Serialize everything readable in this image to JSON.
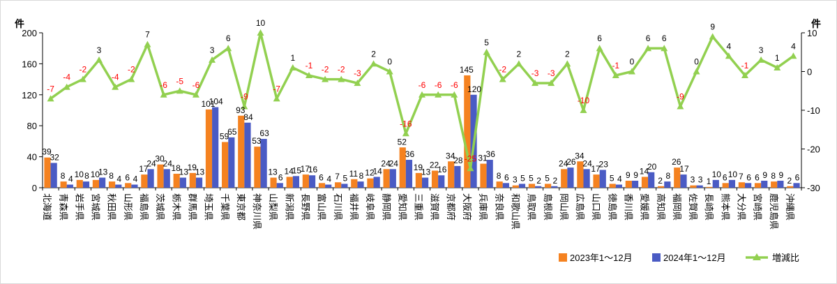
{
  "chart_data": {
    "type": "bar",
    "y_left_unit": "件",
    "y_right_unit": "件",
    "ylim": [
      0,
      200
    ],
    "yticks": [
      0,
      40,
      80,
      120,
      160,
      200
    ],
    "ylim_right": [
      -30,
      10
    ],
    "yticks_right": [
      -30,
      -20,
      -10,
      0,
      10
    ],
    "categories": [
      "北海道",
      "青森県",
      "岩手県",
      "宮城県",
      "秋田県",
      "山形県",
      "福島県",
      "茨城県",
      "栃木県",
      "群馬県",
      "埼玉県",
      "千葉県",
      "東京都",
      "神奈川県",
      "山梨県",
      "新潟県",
      "長野県",
      "富山県",
      "石川県",
      "福井県",
      "岐阜県",
      "静岡県",
      "愛知県",
      "三重県",
      "滋賀県",
      "京都府",
      "大阪府",
      "兵庫県",
      "奈良県",
      "和歌山県",
      "鳥取県",
      "島根県",
      "岡山県",
      "広島県",
      "山口県",
      "徳島県",
      "香川県",
      "愛媛県",
      "高知県",
      "福岡県",
      "佐賀県",
      "長崎県",
      "熊本県",
      "大分県",
      "宮崎県",
      "鹿児島県",
      "沖縄県"
    ],
    "series": [
      {
        "name": "2023年1～12月",
        "type": "bar",
        "axis": "left",
        "color": "#f58220",
        "values": [
          39,
          8,
          10,
          10,
          8,
          6,
          17,
          30,
          18,
          19,
          101,
          59,
          93,
          53,
          13,
          14,
          17,
          6,
          7,
          11,
          12,
          24,
          52,
          19,
          22,
          34,
          145,
          31,
          8,
          3,
          5,
          5,
          24,
          34,
          17,
          5,
          9,
          14,
          2,
          26,
          3,
          1,
          6,
          7,
          6,
          8,
          2
        ]
      },
      {
        "name": "2024年1～12月",
        "type": "bar",
        "axis": "left",
        "color": "#4a5bc4",
        "values": [
          32,
          4,
          8,
          13,
          4,
          4,
          24,
          24,
          13,
          13,
          104,
          65,
          84,
          63,
          6,
          15,
          16,
          4,
          5,
          8,
          14,
          24,
          36,
          13,
          16,
          28,
          120,
          36,
          6,
          5,
          2,
          2,
          26,
          24,
          23,
          4,
          9,
          20,
          8,
          17,
          3,
          10,
          10,
          6,
          9,
          9,
          6
        ]
      },
      {
        "name": "増減比",
        "type": "line",
        "axis": "right",
        "color": "#92d050",
        "values": [
          -7,
          -4,
          -2,
          3,
          -4,
          -2,
          7,
          -6,
          -5,
          -6,
          3,
          6,
          -9,
          10,
          -7,
          1,
          -1,
          -2,
          -2,
          -3,
          2,
          0,
          -16,
          -6,
          -6,
          -6,
          -25,
          5,
          -2,
          2,
          -3,
          -3,
          2,
          -10,
          6,
          -1,
          0,
          6,
          6,
          -9,
          0,
          9,
          4,
          -1,
          3,
          1,
          4
        ]
      }
    ],
    "legend_position": "bottom-right",
    "grid": false
  }
}
